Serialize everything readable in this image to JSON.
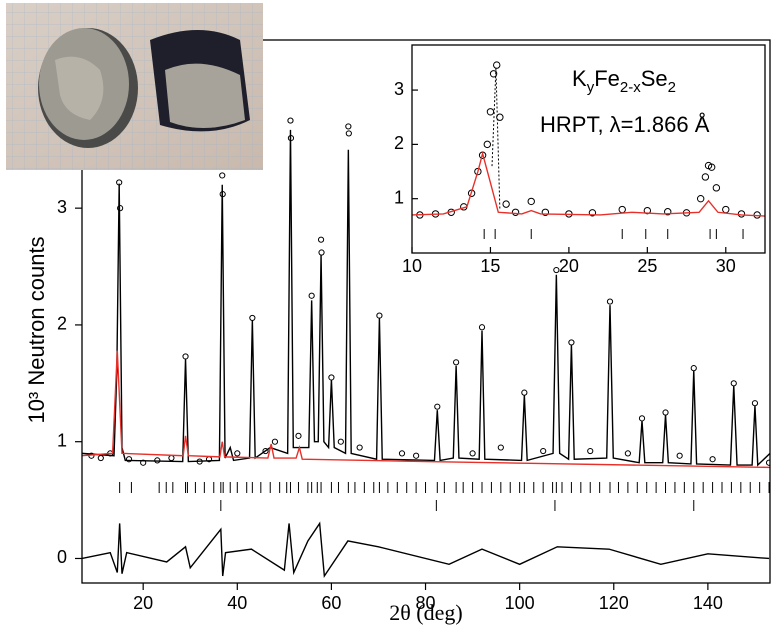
{
  "chart_data": [
    {
      "type": "scatter",
      "x_label": "2θ (deg)",
      "y_label": "10³ Neutron counts",
      "xlim": [
        7,
        153.2
      ],
      "ylim": [
        -0.21,
        4.44
      ],
      "xticks": [
        20,
        40,
        60,
        80,
        100,
        120,
        140
      ],
      "yticks": [
        0,
        1,
        2,
        3
      ],
      "series": [
        {
          "style": "circles",
          "color": "#000000",
          "x": [
            9,
            11,
            13,
            14.9,
            15.1,
            17,
            20,
            23,
            26,
            29,
            32,
            34,
            36.8,
            36.9,
            40,
            43.2,
            46,
            48,
            51.3,
            51.4,
            53,
            55.8,
            57.8,
            57.9,
            60,
            62,
            63.6,
            63.7,
            66,
            70.2,
            75,
            78,
            82.5,
            86.5,
            90,
            92,
            96,
            101,
            105,
            107.8,
            111,
            115,
            119.2,
            123,
            126,
            131,
            134,
            137,
            141,
            145.5,
            150,
            153
          ],
          "values": [
            0.88,
            0.86,
            0.9,
            3.22,
            3.0,
            0.85,
            0.82,
            0.84,
            0.86,
            1.73,
            0.83,
            0.85,
            3.28,
            3.12,
            0.9,
            2.06,
            0.92,
            1.0,
            3.75,
            3.6,
            1.05,
            2.25,
            2.73,
            2.62,
            1.55,
            1.0,
            3.7,
            3.64,
            0.95,
            2.08,
            0.9,
            0.88,
            1.3,
            1.68,
            0.9,
            1.98,
            0.95,
            1.42,
            0.92,
            2.47,
            1.85,
            0.92,
            2.2,
            0.9,
            1.2,
            1.25,
            0.88,
            1.63,
            0.85,
            1.5,
            1.33,
            0.82
          ]
        },
        {
          "style": "line",
          "color": "#000000",
          "x": [
            7,
            13.8,
            14.4,
            14.9,
            15.5,
            16.2,
            28.4,
            29,
            29.6,
            36.2,
            36.8,
            37.4,
            38.5,
            39.2,
            42.6,
            43.2,
            43.8,
            47,
            50.7,
            51.3,
            51.9,
            55.2,
            55.8,
            56.4,
            57.2,
            57.8,
            58.4,
            59.4,
            60,
            60.6,
            63,
            63.6,
            64.2,
            69.6,
            70.2,
            70.8,
            81.9,
            82.5,
            83.1,
            85.9,
            86.5,
            87.1,
            91.4,
            92,
            92.6,
            100.4,
            101,
            101.6,
            107.1,
            107.8,
            108.5,
            110.4,
            111,
            111.6,
            118.5,
            119.2,
            119.9,
            125.4,
            126,
            126.6,
            130.4,
            131,
            131.6,
            136.4,
            137,
            137.6,
            144.8,
            145.5,
            146.2,
            149.4,
            150,
            150.6,
            153.2
          ],
          "values": [
            0.9,
            0.88,
            1.6,
            3.21,
            0.95,
            0.84,
            0.83,
            1.71,
            0.83,
            0.84,
            3.2,
            0.86,
            0.95,
            0.84,
            0.86,
            2.04,
            0.86,
            0.95,
            0.9,
            3.67,
            0.95,
            0.95,
            2.21,
            1.0,
            1.0,
            2.6,
            1.0,
            0.95,
            1.53,
            0.95,
            0.9,
            3.5,
            0.9,
            0.85,
            2.06,
            0.85,
            0.84,
            1.27,
            0.84,
            0.86,
            1.65,
            0.86,
            0.85,
            1.95,
            0.85,
            0.84,
            1.4,
            0.84,
            0.9,
            2.43,
            0.9,
            0.85,
            1.83,
            0.85,
            0.86,
            2.17,
            0.86,
            0.82,
            1.18,
            0.82,
            0.82,
            1.23,
            0.82,
            0.81,
            1.61,
            0.81,
            0.8,
            1.48,
            0.8,
            0.8,
            1.31,
            0.8,
            0.9
          ]
        },
        {
          "style": "line",
          "color": "#e8302a",
          "x": [
            7,
            13.5,
            14.5,
            15.5,
            28.5,
            29,
            29.6,
            36.3,
            36.8,
            37.3,
            46.5,
            47.2,
            47.8,
            52.5,
            53.2,
            53.8,
            80,
            153.2
          ],
          "values": [
            0.88,
            0.9,
            1.78,
            0.9,
            0.88,
            1.05,
            0.88,
            0.87,
            1.0,
            0.87,
            0.86,
            0.98,
            0.86,
            0.86,
            0.95,
            0.85,
            0.83,
            0.78
          ]
        },
        {
          "style": "line",
          "color": "#000000",
          "x": [
            7,
            13,
            14.5,
            15,
            15.5,
            16.5,
            25,
            29,
            30,
            36.5,
            36.9,
            37.5,
            43,
            50,
            51,
            52,
            55,
            57.5,
            58.5,
            63.5,
            70,
            85,
            92,
            100,
            108,
            119,
            130,
            140,
            153
          ],
          "values": [
            0,
            0.05,
            -0.12,
            0.3,
            -0.13,
            0.05,
            -0.03,
            0.1,
            -0.08,
            0.25,
            -0.15,
            0.05,
            0.08,
            -0.1,
            0.3,
            -0.12,
            0.15,
            0.3,
            -0.15,
            0.15,
            0.1,
            -0.05,
            0.08,
            -0.05,
            0.1,
            0.08,
            -0.05,
            0.04,
            0
          ]
        }
      ],
      "reflections": [
        [
          15,
          17.5,
          23.4,
          24.9,
          26.3,
          29,
          29.4,
          31.1,
          33,
          35,
          36.5,
          37,
          38.5,
          40,
          42,
          43.2,
          45,
          47,
          49,
          50.5,
          51.3,
          53,
          55,
          55.8,
          57,
          57.8,
          60,
          61.5,
          63.6,
          65,
          67,
          69,
          70.2,
          72,
          74,
          76,
          78,
          80,
          82.5,
          84,
          86.5,
          88,
          90,
          92,
          94,
          96,
          98,
          100,
          101,
          103,
          105,
          107,
          107.8,
          109,
          111,
          113,
          115,
          117,
          119.2,
          121,
          123,
          125,
          127,
          129,
          131,
          133,
          135,
          137,
          139,
          141,
          143,
          145,
          147,
          149,
          151,
          153
        ],
        [
          36.5,
          82.3,
          107.5,
          137
        ]
      ]
    },
    {
      "type": "scatter",
      "title_parts": [
        "K",
        "y",
        "Fe",
        "2-x",
        "Se",
        "2"
      ],
      "subtitle": "HRPT, λ=1.866 Å",
      "xlim": [
        10,
        32.5
      ],
      "ylim": [
        0,
        3.83
      ],
      "xticks": [
        10,
        15,
        20,
        25,
        30
      ],
      "yticks": [
        1,
        2,
        3
      ],
      "series": [
        {
          "style": "circles",
          "color": "#000000",
          "x": [
            10.5,
            11.5,
            12.5,
            13.3,
            13.8,
            14.2,
            14.5,
            14.8,
            15.0,
            15.2,
            15.4,
            15.6,
            16,
            16.6,
            17.6,
            18.5,
            20,
            21.5,
            23.4,
            25,
            26.3,
            27.5,
            28.4,
            28.7,
            28.9,
            29.1,
            29.4,
            30,
            31,
            32
          ],
          "values": [
            0.7,
            0.72,
            0.75,
            0.85,
            1.1,
            1.5,
            1.8,
            2.0,
            2.6,
            3.3,
            3.46,
            2.5,
            0.9,
            0.75,
            0.95,
            0.75,
            0.72,
            0.74,
            0.8,
            0.78,
            0.76,
            0.74,
            1.0,
            1.4,
            1.61,
            1.58,
            1.2,
            0.8,
            0.72,
            0.7
          ]
        },
        {
          "style": "line",
          "color": "#e8302a",
          "x": [
            10,
            12,
            13.5,
            14.2,
            14.5,
            14.9,
            15.5,
            17,
            17.6,
            18.2,
            22,
            24,
            26,
            28.3,
            28.9,
            29.5,
            31,
            32.5
          ],
          "values": [
            0.7,
            0.72,
            0.85,
            1.5,
            1.83,
            1.4,
            0.75,
            0.72,
            0.78,
            0.72,
            0.7,
            0.75,
            0.72,
            0.75,
            0.96,
            0.75,
            0.7,
            0.68
          ]
        },
        {
          "style": "dotted",
          "color": "#000000",
          "x": [
            15.1,
            15.35,
            15.6
          ],
          "values": [
            1.6,
            3.4,
            0.8
          ]
        }
      ],
      "reflections": [
        [
          14.6,
          15.3,
          17.6,
          23.4,
          24.9,
          26.3,
          29,
          29.4,
          31.1
        ]
      ]
    }
  ]
}
